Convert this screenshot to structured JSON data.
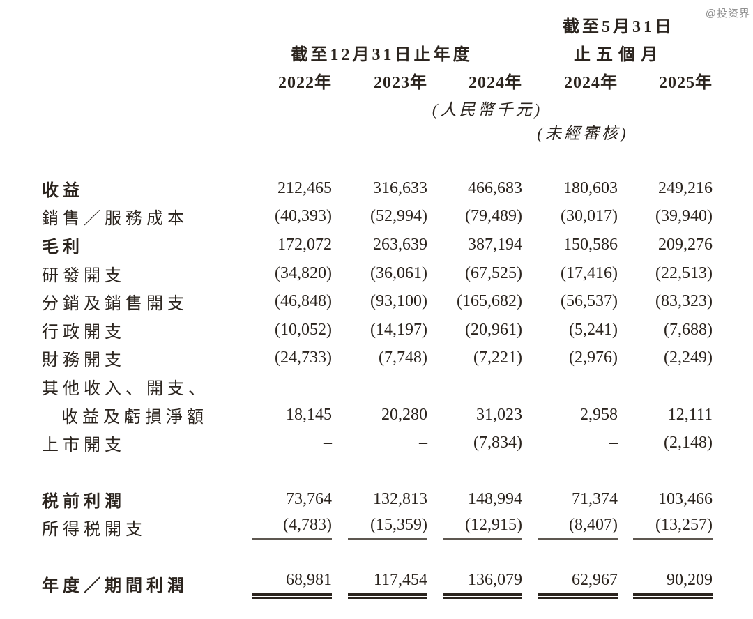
{
  "watermark": "@投资界",
  "header": {
    "group_annual": "截至12月31日止年度",
    "group_five_months_line1": "截至5月31日",
    "group_five_months_line2": "止五個月",
    "col_years": [
      "2022年",
      "2023年",
      "2024年",
      "2024年",
      "2025年"
    ],
    "unit_note": "(人民幣千元)",
    "unaudited_note": "(未經審核)"
  },
  "table": {
    "rows": [
      {
        "label": "收益",
        "bold": true,
        "values": [
          "212,465",
          "316,633",
          "466,683",
          "180,603",
          "249,216"
        ]
      },
      {
        "label": "銷售／服務成本",
        "values": [
          "(40,393)",
          "(52,994)",
          "(79,489)",
          "(30,017)",
          "(39,940)"
        ]
      },
      {
        "label": "毛利",
        "bold": true,
        "values": [
          "172,072",
          "263,639",
          "387,194",
          "150,586",
          "209,276"
        ]
      },
      {
        "label": "研發開支",
        "values": [
          "(34,820)",
          "(36,061)",
          "(67,525)",
          "(17,416)",
          "(22,513)"
        ]
      },
      {
        "label": "分銷及銷售開支",
        "values": [
          "(46,848)",
          "(93,100)",
          "(165,682)",
          "(56,537)",
          "(83,323)"
        ]
      },
      {
        "label": "行政開支",
        "values": [
          "(10,052)",
          "(14,197)",
          "(20,961)",
          "(5,241)",
          "(7,688)"
        ]
      },
      {
        "label": "財務開支",
        "values": [
          "(24,733)",
          "(7,748)",
          "(7,221)",
          "(2,976)",
          "(2,249)"
        ]
      },
      {
        "label": "其他收入、開支、",
        "values": [
          "",
          "",
          "",
          "",
          ""
        ]
      },
      {
        "label": "收益及虧損淨額",
        "indent": true,
        "values": [
          "18,145",
          "20,280",
          "31,023",
          "2,958",
          "12,111"
        ]
      },
      {
        "label": "上市開支",
        "values": [
          "–",
          "–",
          "(7,834)",
          "–",
          "(2,148)"
        ]
      },
      {
        "spacer": true
      },
      {
        "label": "税前利潤",
        "bold": true,
        "values": [
          "73,764",
          "132,813",
          "148,994",
          "71,374",
          "103,466"
        ]
      },
      {
        "label": "所得税開支",
        "underline": "single",
        "values": [
          "(4,783)",
          "(15,359)",
          "(12,915)",
          "(8,407)",
          "(13,257)"
        ]
      },
      {
        "spacer": true
      },
      {
        "label": "年度／期間利潤",
        "bold": true,
        "underline": "double",
        "values": [
          "68,981",
          "117,454",
          "136,079",
          "62,967",
          "90,209"
        ]
      }
    ]
  }
}
